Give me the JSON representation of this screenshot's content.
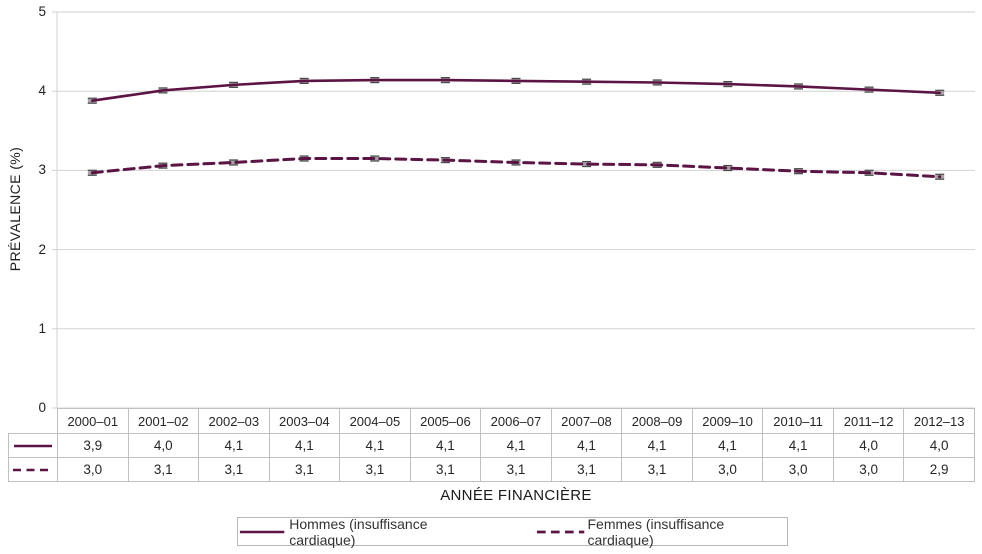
{
  "colors": {
    "series_line": "#5c1445",
    "gridline": "#d2d2d2",
    "table_border": "#bfbfbf",
    "marker_fill": "#a5a5a5",
    "marker_cap": "#4a4a4a",
    "legend_border": "#b7b7b7",
    "text": "#262626"
  },
  "chart_data": {
    "type": "line",
    "title": "",
    "xlabel": "ANNÉE FINANCIÈRE",
    "ylabel": "PRÉVALENCE (%)",
    "ylim": [
      0,
      5
    ],
    "yticks": [
      0,
      1,
      2,
      3,
      4,
      5
    ],
    "grid": "horizontal",
    "legend_position": "bottom",
    "marker": "error-bar",
    "categories": [
      "2000–01",
      "2001–02",
      "2002–03",
      "2003–04",
      "2004–05",
      "2005–06",
      "2006–07",
      "2007–08",
      "2008–09",
      "2009–10",
      "2010–11",
      "2011–12",
      "2012–13"
    ],
    "series": [
      {
        "name": "Hommes (insuffisance cardiaque)",
        "line_style": "solid",
        "color": "#5c1445",
        "values": [
          3.88,
          4.01,
          4.08,
          4.13,
          4.14,
          4.14,
          4.13,
          4.12,
          4.11,
          4.09,
          4.06,
          4.02,
          3.98
        ],
        "table_values": [
          "3,9",
          "4,0",
          "4,1",
          "4,1",
          "4,1",
          "4,1",
          "4,1",
          "4,1",
          "4,1",
          "4,1",
          "4,1",
          "4,0",
          "4,0"
        ]
      },
      {
        "name": "Femmes (insuffisance cardiaque)",
        "line_style": "dashed",
        "color": "#5c1445",
        "values": [
          2.97,
          3.06,
          3.1,
          3.15,
          3.15,
          3.13,
          3.1,
          3.08,
          3.07,
          3.03,
          2.99,
          2.97,
          2.92
        ],
        "table_values": [
          "3,0",
          "3,1",
          "3,1",
          "3,1",
          "3,1",
          "3,1",
          "3,1",
          "3,1",
          "3,1",
          "3,0",
          "3,0",
          "3,0",
          "2,9"
        ]
      }
    ]
  }
}
